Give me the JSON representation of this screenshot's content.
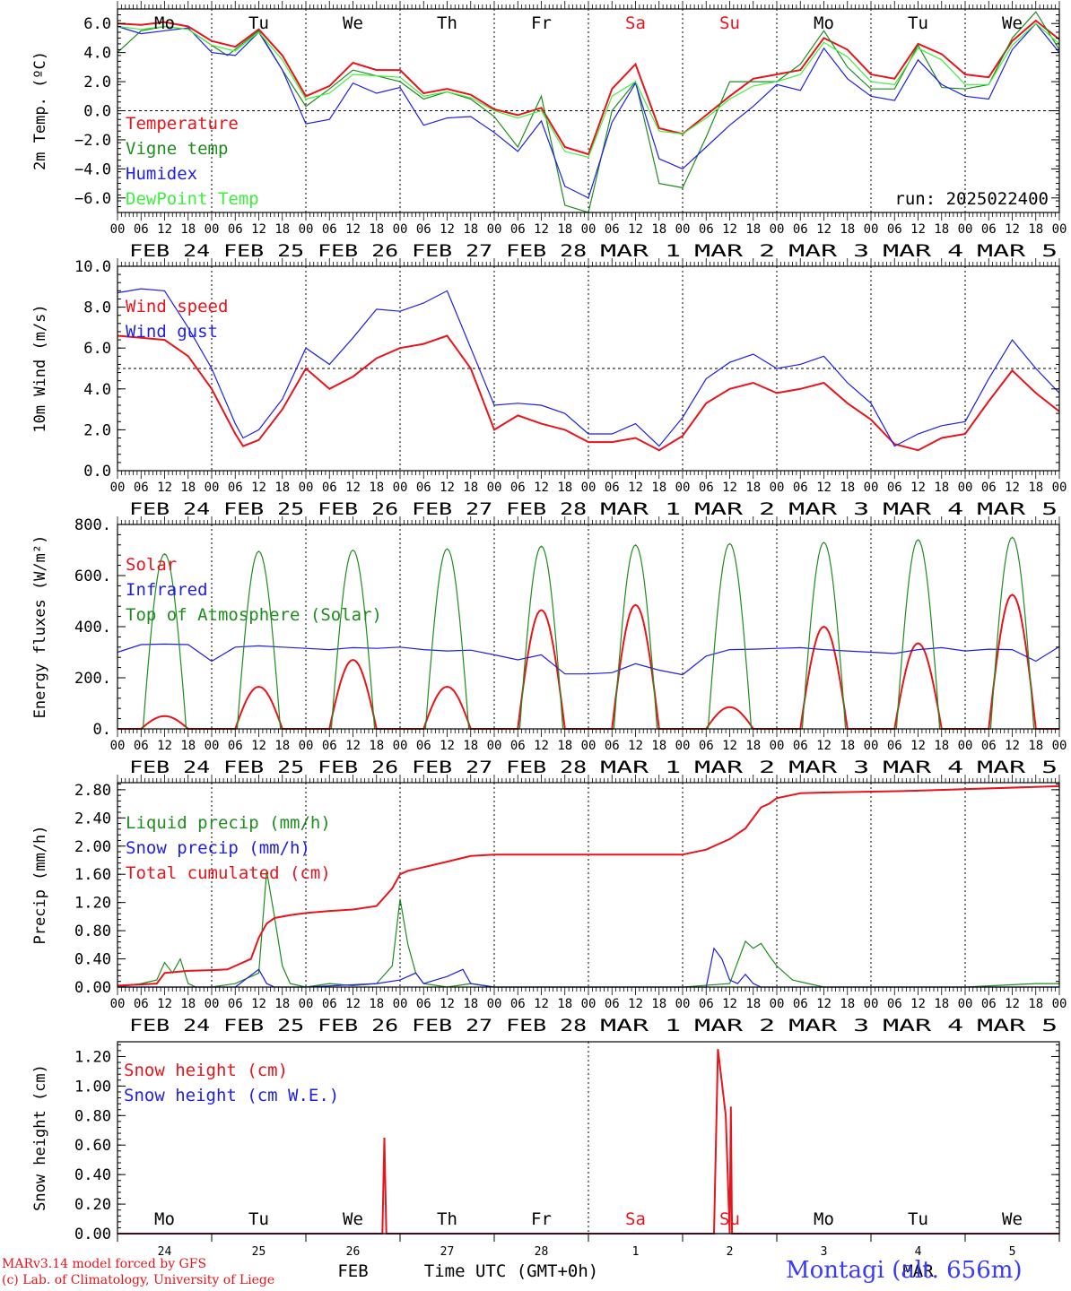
{
  "days": [
    "Mo",
    "Tu",
    "We",
    "Th",
    "Fr",
    "Sa",
    "Su",
    "Mo",
    "Tu",
    "We"
  ],
  "weekend_days": [
    5,
    6
  ],
  "hour_labels": [
    "00",
    "06",
    "12",
    "18"
  ],
  "date_labels": [
    "FEB 24",
    "FEB 25",
    "FEB 26",
    "FEB 27",
    "FEB 28",
    "MAR  1",
    "MAR  2",
    "MAR  3",
    "MAR  4",
    "MAR  5"
  ],
  "day_numbers": [
    "24",
    "25",
    "26",
    "27",
    "28",
    "1",
    "2",
    "3",
    "4",
    "5"
  ],
  "month_labels": [
    "FEB",
    "MAR"
  ],
  "xlabel": "Time UTC (GMT+0h)",
  "run_label": "run: 2025022400",
  "credit_line1": "MARv3.14 model forced by GFS",
  "credit_line2": "(c) Lab. of Climatology, University of Liege",
  "station": "Montagi (alt. 656m)",
  "colors": {
    "red": "#e8141b",
    "green": "#1e8c1e",
    "blue": "#1e1ee6",
    "lightgreen": "#3cf03c",
    "axis": "#000000"
  },
  "chart_data": [
    {
      "type": "line",
      "id": "temp",
      "ylabel": "2m Temp. (ºC)",
      "ylim": [
        -7,
        7
      ],
      "yticks": [
        -6,
        -4,
        -2,
        0,
        2,
        4,
        6
      ],
      "ytick_labels": [
        "−6.0",
        "−4.0",
        "−2.0",
        "0.0",
        "2.0",
        "4.0",
        "6.0"
      ],
      "hline": 0,
      "legend_placement": "top-left",
      "x_unit": "hours since 2025-02-24 00 UTC",
      "series": [
        {
          "name": "Temperature",
          "color": "red",
          "x": [
            0,
            6,
            12,
            18,
            24,
            30,
            36,
            42,
            48,
            54,
            60,
            66,
            72,
            78,
            84,
            90,
            96,
            102,
            108,
            114,
            120,
            126,
            132,
            138,
            144,
            150,
            156,
            162,
            168,
            174,
            180,
            186,
            192,
            198,
            204,
            210,
            216,
            222,
            228,
            234,
            240
          ],
          "y": [
            6.0,
            5.9,
            6.1,
            5.8,
            4.8,
            4.4,
            5.6,
            3.8,
            1.0,
            1.7,
            3.3,
            2.8,
            2.8,
            1.2,
            1.5,
            1.1,
            0.1,
            -0.3,
            0.2,
            -2.5,
            -3.0,
            1.5,
            3.2,
            -1.2,
            -1.6,
            -0.3,
            1.0,
            2.2,
            2.5,
            2.8,
            5.0,
            4.2,
            2.5,
            2.2,
            4.6,
            3.9,
            2.5,
            2.3,
            4.8,
            6.2,
            4.9
          ]
        },
        {
          "name": "Vigne temp",
          "color": "green",
          "x": [
            0,
            6,
            12,
            18,
            24,
            28,
            36,
            42,
            48,
            54,
            60,
            66,
            72,
            78,
            84,
            90,
            96,
            102,
            108,
            114,
            120,
            126,
            132,
            138,
            144,
            150,
            156,
            162,
            168,
            174,
            180,
            186,
            192,
            198,
            204,
            210,
            216,
            222,
            228,
            234,
            240
          ],
          "y": [
            4.0,
            5.5,
            5.8,
            5.6,
            4.5,
            3.8,
            5.5,
            2.8,
            0.3,
            1.5,
            2.8,
            2.4,
            2.0,
            0.8,
            1.3,
            0.8,
            -0.4,
            -2.5,
            1.0,
            -6.5,
            -7.0,
            0.0,
            2.0,
            -5.0,
            -5.3,
            -1.8,
            2.0,
            2.0,
            2.0,
            3.2,
            5.5,
            3.0,
            1.5,
            1.5,
            4.5,
            1.6,
            1.5,
            1.8,
            5.0,
            6.8,
            4.2
          ]
        },
        {
          "name": "Humidex",
          "color": "blue",
          "x": [
            0,
            6,
            12,
            18,
            24,
            30,
            36,
            42,
            48,
            54,
            60,
            66,
            72,
            78,
            84,
            90,
            96,
            102,
            108,
            114,
            120,
            126,
            132,
            138,
            144,
            150,
            156,
            162,
            168,
            174,
            180,
            186,
            192,
            198,
            204,
            210,
            216,
            222,
            228,
            234,
            240
          ],
          "y": [
            5.8,
            5.3,
            5.5,
            5.7,
            4.0,
            3.8,
            5.4,
            2.8,
            -0.9,
            -0.6,
            1.9,
            1.2,
            1.6,
            -1.0,
            -0.5,
            -0.4,
            -1.5,
            -2.8,
            -0.7,
            -5.2,
            -6.0,
            -0.8,
            1.9,
            -3.3,
            -4.0,
            -2.5,
            -1.0,
            0.3,
            1.8,
            1.4,
            4.3,
            2.2,
            1.0,
            0.7,
            3.5,
            1.8,
            1.0,
            0.8,
            4.2,
            6.0,
            4.0
          ]
        },
        {
          "name": "DewPoint Temp",
          "color": "lightgreen",
          "x": [
            0,
            6,
            12,
            18,
            24,
            30,
            36,
            42,
            48,
            54,
            60,
            66,
            72,
            78,
            84,
            90,
            96,
            102,
            108,
            114,
            120,
            126,
            132,
            138,
            144,
            150,
            156,
            162,
            168,
            174,
            180,
            186,
            192,
            198,
            204,
            210,
            216,
            222,
            228,
            234,
            240
          ],
          "y": [
            5.8,
            5.6,
            5.8,
            5.6,
            4.5,
            4.1,
            5.4,
            3.5,
            0.8,
            1.2,
            2.5,
            2.4,
            2.3,
            1.0,
            1.3,
            0.9,
            0.0,
            -0.5,
            0.0,
            -2.8,
            -3.2,
            1.0,
            2.0,
            -1.4,
            -1.6,
            -0.5,
            0.8,
            1.7,
            2.0,
            2.5,
            4.7,
            3.7,
            2.0,
            1.8,
            4.3,
            3.5,
            1.8,
            1.8,
            4.5,
            6.0,
            4.6
          ]
        }
      ]
    },
    {
      "type": "line",
      "id": "wind",
      "ylabel": "10m Wind (m/s)",
      "ylim": [
        0,
        10
      ],
      "yticks": [
        0,
        2,
        4,
        6,
        8,
        10
      ],
      "ytick_labels": [
        "0.0",
        "2.0",
        "4.0",
        "6.0",
        "8.0",
        "10.0"
      ],
      "hline": 5,
      "legend_placement": "top-left",
      "series": [
        {
          "name": "Wind speed",
          "color": "red",
          "x": [
            0,
            6,
            12,
            18,
            24,
            30,
            32,
            36,
            42,
            48,
            54,
            60,
            66,
            72,
            78,
            84,
            90,
            96,
            102,
            108,
            114,
            120,
            126,
            132,
            138,
            144,
            150,
            156,
            162,
            168,
            174,
            180,
            186,
            192,
            198,
            204,
            210,
            216,
            222,
            228,
            234,
            240
          ],
          "y": [
            6.6,
            6.5,
            6.4,
            5.6,
            4.0,
            1.8,
            1.2,
            1.5,
            3.0,
            5.0,
            4.0,
            4.6,
            5.5,
            6.0,
            6.2,
            6.6,
            5.0,
            2.0,
            2.7,
            2.3,
            2.0,
            1.4,
            1.4,
            1.6,
            1.0,
            1.7,
            3.3,
            4.0,
            4.3,
            3.8,
            4.0,
            4.3,
            3.3,
            2.5,
            1.3,
            1.0,
            1.6,
            1.8,
            3.4,
            4.9,
            3.8,
            2.9
          ]
        },
        {
          "name": "Wind gust",
          "color": "blue",
          "x": [
            0,
            6,
            12,
            18,
            24,
            30,
            32,
            36,
            42,
            48,
            54,
            60,
            66,
            72,
            78,
            84,
            90,
            96,
            102,
            108,
            114,
            120,
            126,
            132,
            138,
            144,
            150,
            156,
            162,
            168,
            174,
            180,
            186,
            192,
            198,
            204,
            210,
            216,
            222,
            228,
            234,
            240
          ],
          "y": [
            8.7,
            8.9,
            8.8,
            7.0,
            5.0,
            2.3,
            1.6,
            2.0,
            3.5,
            6.0,
            5.2,
            6.5,
            7.9,
            7.8,
            8.2,
            8.8,
            6.0,
            3.2,
            3.3,
            3.2,
            2.8,
            1.8,
            1.8,
            2.3,
            1.2,
            2.6,
            4.5,
            5.3,
            5.7,
            5.0,
            5.2,
            5.6,
            4.3,
            3.3,
            1.2,
            1.8,
            2.2,
            2.4,
            4.5,
            6.4,
            5.0,
            3.8
          ]
        }
      ]
    },
    {
      "type": "line",
      "id": "energy",
      "ylabel": "Energy fluxes (W/m²)",
      "ylim": [
        0,
        800
      ],
      "yticks": [
        0,
        200,
        400,
        600,
        800
      ],
      "ytick_labels": [
        "0.",
        "200.",
        "400.",
        "600.",
        "800."
      ],
      "legend_placement": "top-left",
      "series": [
        {
          "name": "Solar",
          "color": "red",
          "peaks": [
            50,
            165,
            270,
            165,
            465,
            485,
            85,
            400,
            335,
            525
          ],
          "peak_hour": 12,
          "half_width": 6
        },
        {
          "name": "Infrared",
          "color": "blue",
          "x": [
            0,
            6,
            12,
            18,
            24,
            30,
            36,
            42,
            48,
            54,
            60,
            66,
            72,
            78,
            84,
            90,
            96,
            102,
            108,
            114,
            120,
            126,
            132,
            138,
            144,
            150,
            156,
            162,
            168,
            174,
            180,
            186,
            192,
            198,
            204,
            210,
            216,
            222,
            228,
            234,
            240
          ],
          "y": [
            300,
            330,
            332,
            330,
            265,
            320,
            325,
            320,
            315,
            310,
            318,
            315,
            320,
            310,
            305,
            308,
            290,
            270,
            290,
            215,
            215,
            220,
            255,
            230,
            212,
            285,
            310,
            312,
            315,
            318,
            310,
            305,
            300,
            295,
            310,
            318,
            305,
            312,
            310,
            265,
            322
          ]
        },
        {
          "name": "Top of Atmosphere (Solar)",
          "color": "green",
          "peaks": [
            685,
            695,
            700,
            705,
            715,
            720,
            725,
            730,
            740,
            750
          ],
          "peak_hour": 12,
          "half_width": 5.5
        }
      ]
    },
    {
      "type": "line",
      "id": "precip",
      "ylabel": "Precip (mm/h)",
      "ylim": [
        0,
        2.9
      ],
      "yticks": [
        0,
        0.4,
        0.8,
        1.2,
        1.6,
        2.0,
        2.4,
        2.8
      ],
      "ytick_labels": [
        "0.00",
        "0.40",
        "0.80",
        "1.20",
        "1.60",
        "2.00",
        "2.40",
        "2.80"
      ],
      "legend_placement": "top-left",
      "series": [
        {
          "name": "Liquid precip (mm/h)",
          "color": "green",
          "x": [
            0,
            6,
            10,
            12,
            14,
            16,
            18,
            20,
            22,
            24,
            30,
            36,
            38,
            40,
            42,
            44,
            48,
            54,
            60,
            66,
            70,
            72,
            74,
            76,
            78,
            84,
            90,
            96,
            120,
            144,
            156,
            160,
            162,
            164,
            166,
            168,
            172,
            180,
            216,
            234,
            240
          ],
          "y": [
            0,
            0.05,
            0.1,
            0.35,
            0.2,
            0.4,
            0.05,
            0,
            0,
            0,
            0.05,
            0.2,
            1.65,
            1.0,
            0.3,
            0.05,
            0,
            0.05,
            0.02,
            0.05,
            0.3,
            1.25,
            0.6,
            0.2,
            0.05,
            0,
            0.05,
            0,
            0,
            0,
            0.05,
            0.65,
            0.55,
            0.62,
            0.45,
            0.3,
            0.1,
            0,
            0,
            0.05,
            0.05
          ]
        },
        {
          "name": "Snow precip (mm/h)",
          "color": "blue",
          "x": [
            0,
            30,
            36,
            38,
            40,
            48,
            66,
            72,
            76,
            78,
            84,
            88,
            90,
            96,
            144,
            150,
            152,
            154,
            156,
            158,
            160,
            162,
            164,
            166,
            168,
            240
          ],
          "y": [
            0,
            0,
            0.25,
            0.05,
            0,
            0,
            0.05,
            0.1,
            0.2,
            0.05,
            0.15,
            0.25,
            0.05,
            0,
            0,
            0,
            0.55,
            0.4,
            0.1,
            0.05,
            0.18,
            0.05,
            0,
            0,
            0,
            0
          ]
        },
        {
          "name": "Total cumulated (cm)",
          "color": "red",
          "x": [
            0,
            10,
            12,
            18,
            24,
            28,
            34,
            36,
            38,
            40,
            44,
            48,
            54,
            60,
            66,
            70,
            72,
            74,
            78,
            84,
            90,
            96,
            120,
            144,
            150,
            156,
            160,
            164,
            166,
            168,
            174,
            180,
            200,
            240
          ],
          "y": [
            0.02,
            0.05,
            0.2,
            0.23,
            0.24,
            0.25,
            0.4,
            0.7,
            0.9,
            0.98,
            1.02,
            1.05,
            1.08,
            1.1,
            1.15,
            1.4,
            1.6,
            1.65,
            1.7,
            1.78,
            1.86,
            1.88,
            1.88,
            1.88,
            1.95,
            2.1,
            2.25,
            2.55,
            2.6,
            2.68,
            2.75,
            2.76,
            2.78,
            2.85
          ]
        }
      ]
    },
    {
      "type": "line",
      "id": "snow",
      "ylabel": "Snow height (cm)",
      "ylim": [
        0,
        1.3
      ],
      "yticks": [
        0,
        0.2,
        0.4,
        0.6,
        0.8,
        1.0,
        1.2
      ],
      "ytick_labels": [
        "0.00",
        "0.20",
        "0.40",
        "0.60",
        "0.80",
        "1.00",
        "1.20"
      ],
      "legend_placement": "top-left",
      "series": [
        {
          "name": "Snow height (cm)",
          "color": "red",
          "x": [
            0,
            67.5,
            68,
            68.5,
            152,
            153,
            155,
            156,
            156.3,
            156.6,
            157,
            240
          ],
          "y": [
            0,
            0,
            0.65,
            0,
            0,
            1.25,
            0.8,
            0,
            0.86,
            0,
            0,
            0
          ]
        },
        {
          "name": "Snow height (cm W.E.)",
          "color": "blue",
          "x": [
            0,
            240
          ],
          "y": [
            0,
            0
          ]
        }
      ]
    }
  ]
}
